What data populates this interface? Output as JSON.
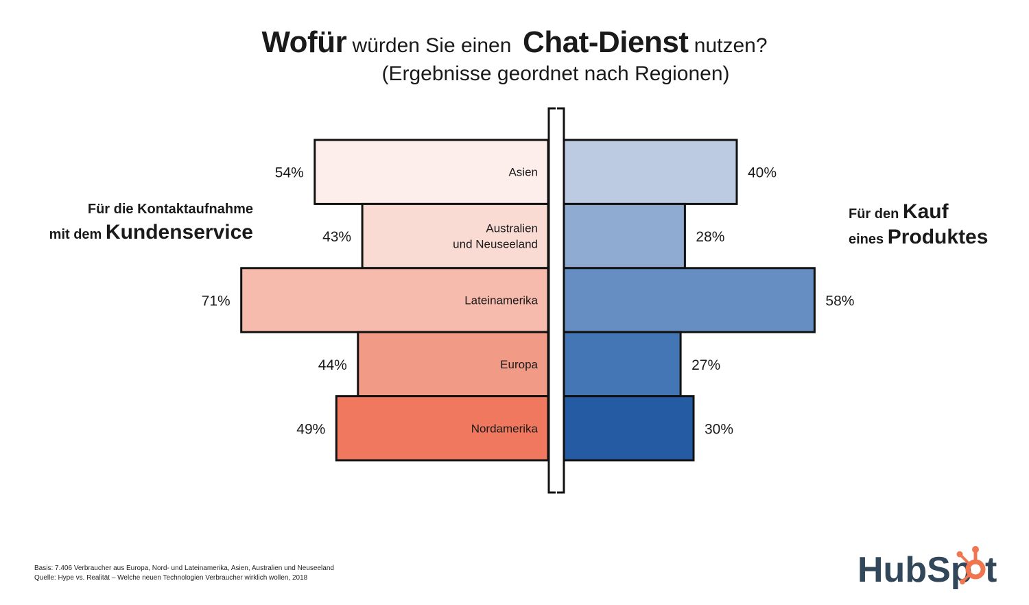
{
  "title": {
    "part1": "Wofür",
    "part2": "würden Sie einen",
    "part3": "Chat-Dienst",
    "part4": "nutzen?",
    "subtitle": "(Ergebnisse geordnet nach Regionen)"
  },
  "left_heading": {
    "line1": "Für die Kontaktaufnahme",
    "line2_small": "mit dem",
    "line2_big": "Kundenservice"
  },
  "right_heading": {
    "line1_small": "Für den",
    "line1_big": "Kauf",
    "line2_small": "eines",
    "line2_big": "Produktes"
  },
  "footnote": {
    "basis": "Basis: 7.406 Verbraucher aus Europa, Nord- und Lateinamerika, Asien, Australien und Neuseeland",
    "source": "Quelle: Hype vs. Realität – Welche neuen Technologien Verbraucher wirklich wollen, 2018"
  },
  "logo": {
    "text_part1": "HubSp",
    "text_part2": "t",
    "text_color": "#33475b",
    "accent_color": "#f07650"
  },
  "chart_data": {
    "type": "bar",
    "orientation": "horizontal-diverging",
    "title": "Wofür würden Sie einen Chat-Dienst nutzen?",
    "subtitle": "(Ergebnisse geordnet nach Regionen)",
    "categories": [
      "Asien",
      "Australien\nund Neuseeland",
      "Lateinamerika",
      "Europa",
      "Nordamerika"
    ],
    "category_lines": [
      [
        "Asien"
      ],
      [
        "Australien",
        "und Neuseeland"
      ],
      [
        "Lateinamerika"
      ],
      [
        "Europa"
      ],
      [
        "Nordamerika"
      ]
    ],
    "unit": "%",
    "series": [
      {
        "name": "Für die Kontaktaufnahme mit dem Kundenservice",
        "side": "left",
        "values": [
          54,
          43,
          71,
          44,
          49
        ],
        "labels": [
          "54%",
          "43%",
          "71%",
          "44%",
          "49%"
        ],
        "colors": [
          "#fdeeec",
          "#fadbd4",
          "#f7bbae",
          "#f19b87",
          "#ef785e"
        ]
      },
      {
        "name": "Für den Kauf eines Produktes",
        "side": "right",
        "values": [
          40,
          28,
          58,
          27,
          30
        ],
        "labels": [
          "40%",
          "28%",
          "58%",
          "27%",
          "30%"
        ],
        "colors": [
          "#bccbe2",
          "#8fabd2",
          "#678ec2",
          "#4475b4",
          "#255ba3"
        ]
      }
    ],
    "xlim": [
      0,
      100
    ],
    "grid": false,
    "legend": "none"
  }
}
